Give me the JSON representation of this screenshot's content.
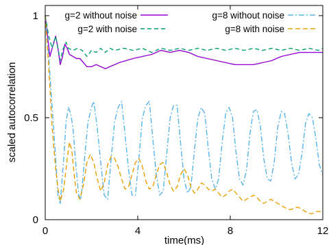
{
  "chart_data": {
    "type": "line",
    "xlabel": "time(ms)",
    "ylabel": "scaled autocorrelation",
    "xlim": [
      0,
      12
    ],
    "ylim": [
      0,
      1.05
    ],
    "xticks": [
      0,
      4,
      8,
      12
    ],
    "xtick_labels": [
      "0",
      "4",
      "8",
      "12"
    ],
    "yticks": [
      0,
      0.5,
      1
    ],
    "ytick_labels": [
      "0",
      "0.5",
      "1"
    ],
    "grid": false,
    "legend_placement": "top",
    "series": [
      {
        "name": "g=2 without noise",
        "color": "#9400d3",
        "dash": "solid",
        "points": [
          [
            0,
            1.0
          ],
          [
            0.2,
            0.8
          ],
          [
            0.3,
            0.84
          ],
          [
            0.45,
            0.9
          ],
          [
            0.55,
            0.84
          ],
          [
            0.65,
            0.76
          ],
          [
            0.75,
            0.8
          ],
          [
            0.85,
            0.86
          ],
          [
            0.95,
            0.84
          ],
          [
            1.05,
            0.81
          ],
          [
            1.2,
            0.8
          ],
          [
            1.35,
            0.79
          ],
          [
            1.5,
            0.79
          ],
          [
            1.65,
            0.77
          ],
          [
            1.8,
            0.75
          ],
          [
            2.0,
            0.75
          ],
          [
            2.2,
            0.76
          ],
          [
            2.4,
            0.75
          ],
          [
            2.6,
            0.74
          ],
          [
            2.8,
            0.75
          ],
          [
            3.0,
            0.76
          ],
          [
            3.2,
            0.77
          ],
          [
            3.5,
            0.78
          ],
          [
            3.8,
            0.79
          ],
          [
            4.2,
            0.8
          ],
          [
            4.6,
            0.81
          ],
          [
            5.0,
            0.83
          ],
          [
            5.4,
            0.82
          ],
          [
            5.8,
            0.83
          ],
          [
            6.2,
            0.82
          ],
          [
            6.6,
            0.8
          ],
          [
            7.0,
            0.79
          ],
          [
            7.4,
            0.78
          ],
          [
            7.8,
            0.77
          ],
          [
            8.2,
            0.76
          ],
          [
            8.6,
            0.76
          ],
          [
            9.0,
            0.76
          ],
          [
            9.4,
            0.77
          ],
          [
            9.8,
            0.78
          ],
          [
            10.2,
            0.8
          ],
          [
            10.6,
            0.81
          ],
          [
            11.0,
            0.82
          ],
          [
            11.4,
            0.82
          ],
          [
            11.8,
            0.82
          ],
          [
            12.0,
            0.82
          ]
        ]
      },
      {
        "name": "g=2 with noise",
        "color": "#009e73",
        "dash": "6,4",
        "points": [
          [
            0,
            1.0
          ],
          [
            0.15,
            0.9
          ],
          [
            0.3,
            0.84
          ],
          [
            0.45,
            0.9
          ],
          [
            0.55,
            0.84
          ],
          [
            0.65,
            0.78
          ],
          [
            0.75,
            0.83
          ],
          [
            0.9,
            0.87
          ],
          [
            1.0,
            0.84
          ],
          [
            1.2,
            0.83
          ],
          [
            1.4,
            0.84
          ],
          [
            1.6,
            0.83
          ],
          [
            1.8,
            0.8
          ],
          [
            2.0,
            0.83
          ],
          [
            2.2,
            0.82
          ],
          [
            2.4,
            0.84
          ],
          [
            2.6,
            0.82
          ],
          [
            2.8,
            0.84
          ],
          [
            3.0,
            0.83
          ],
          [
            3.4,
            0.84
          ],
          [
            3.8,
            0.83
          ],
          [
            4.2,
            0.84
          ],
          [
            4.6,
            0.82
          ],
          [
            5.0,
            0.84
          ],
          [
            5.4,
            0.83
          ],
          [
            5.8,
            0.84
          ],
          [
            6.2,
            0.83
          ],
          [
            6.6,
            0.84
          ],
          [
            7.0,
            0.83
          ],
          [
            7.4,
            0.84
          ],
          [
            7.8,
            0.83
          ],
          [
            8.2,
            0.84
          ],
          [
            8.6,
            0.83
          ],
          [
            9.0,
            0.84
          ],
          [
            9.4,
            0.83
          ],
          [
            9.8,
            0.84
          ],
          [
            10.2,
            0.83
          ],
          [
            10.6,
            0.84
          ],
          [
            11.0,
            0.83
          ],
          [
            11.4,
            0.84
          ],
          [
            11.8,
            0.83
          ],
          [
            12.0,
            0.84
          ]
        ]
      },
      {
        "name": "g=8 without noise",
        "color": "#56b4e9",
        "dash": "8,3,2,3",
        "points": [
          [
            0,
            1.0
          ],
          [
            0.15,
            0.8
          ],
          [
            0.3,
            0.55
          ],
          [
            0.45,
            0.3
          ],
          [
            0.55,
            0.12
          ],
          [
            0.65,
            0.08
          ],
          [
            0.8,
            0.3
          ],
          [
            0.9,
            0.48
          ],
          [
            1.0,
            0.55
          ],
          [
            1.1,
            0.52
          ],
          [
            1.2,
            0.45
          ],
          [
            1.3,
            0.3
          ],
          [
            1.45,
            0.12
          ],
          [
            1.55,
            0.1
          ],
          [
            1.7,
            0.3
          ],
          [
            1.85,
            0.48
          ],
          [
            2.0,
            0.55
          ],
          [
            2.1,
            0.58
          ],
          [
            2.25,
            0.45
          ],
          [
            2.4,
            0.28
          ],
          [
            2.55,
            0.12
          ],
          [
            2.7,
            0.1
          ],
          [
            2.85,
            0.3
          ],
          [
            3.0,
            0.48
          ],
          [
            3.15,
            0.55
          ],
          [
            3.3,
            0.58
          ],
          [
            3.45,
            0.42
          ],
          [
            3.6,
            0.25
          ],
          [
            3.75,
            0.12
          ],
          [
            3.9,
            0.12
          ],
          [
            4.05,
            0.3
          ],
          [
            4.2,
            0.5
          ],
          [
            4.35,
            0.56
          ],
          [
            4.5,
            0.58
          ],
          [
            4.65,
            0.4
          ],
          [
            4.8,
            0.22
          ],
          [
            4.95,
            0.12
          ],
          [
            5.1,
            0.14
          ],
          [
            5.25,
            0.32
          ],
          [
            5.4,
            0.5
          ],
          [
            5.55,
            0.56
          ],
          [
            5.7,
            0.56
          ],
          [
            5.85,
            0.38
          ],
          [
            6.0,
            0.2
          ],
          [
            6.15,
            0.13
          ],
          [
            6.3,
            0.16
          ],
          [
            6.45,
            0.34
          ],
          [
            6.6,
            0.5
          ],
          [
            6.75,
            0.55
          ],
          [
            6.9,
            0.52
          ],
          [
            7.05,
            0.35
          ],
          [
            7.2,
            0.2
          ],
          [
            7.35,
            0.15
          ],
          [
            7.5,
            0.2
          ],
          [
            7.65,
            0.38
          ],
          [
            7.8,
            0.52
          ],
          [
            7.95,
            0.55
          ],
          [
            8.1,
            0.5
          ],
          [
            8.25,
            0.33
          ],
          [
            8.4,
            0.2
          ],
          [
            8.55,
            0.17
          ],
          [
            8.7,
            0.24
          ],
          [
            8.85,
            0.42
          ],
          [
            9.0,
            0.53
          ],
          [
            9.15,
            0.54
          ],
          [
            9.3,
            0.46
          ],
          [
            9.45,
            0.3
          ],
          [
            9.6,
            0.2
          ],
          [
            9.75,
            0.19
          ],
          [
            9.9,
            0.28
          ],
          [
            10.05,
            0.45
          ],
          [
            10.2,
            0.53
          ],
          [
            10.35,
            0.52
          ],
          [
            10.5,
            0.42
          ],
          [
            10.65,
            0.28
          ],
          [
            10.8,
            0.2
          ],
          [
            10.95,
            0.22
          ],
          [
            11.1,
            0.32
          ],
          [
            11.25,
            0.47
          ],
          [
            11.4,
            0.52
          ],
          [
            11.55,
            0.5
          ],
          [
            11.7,
            0.4
          ],
          [
            11.85,
            0.27
          ],
          [
            12.0,
            0.22
          ]
        ]
      },
      {
        "name": "g=8 with noise",
        "color": "#e69f00",
        "dash": "7,4",
        "points": [
          [
            0,
            1.0
          ],
          [
            0.15,
            0.75
          ],
          [
            0.3,
            0.45
          ],
          [
            0.45,
            0.25
          ],
          [
            0.55,
            0.15
          ],
          [
            0.65,
            0.09
          ],
          [
            0.8,
            0.15
          ],
          [
            0.95,
            0.3
          ],
          [
            1.05,
            0.38
          ],
          [
            1.15,
            0.34
          ],
          [
            1.25,
            0.22
          ],
          [
            1.35,
            0.13
          ],
          [
            1.5,
            0.1
          ],
          [
            1.65,
            0.17
          ],
          [
            1.8,
            0.28
          ],
          [
            1.95,
            0.32
          ],
          [
            2.1,
            0.28
          ],
          [
            2.25,
            0.2
          ],
          [
            2.4,
            0.14
          ],
          [
            2.55,
            0.18
          ],
          [
            2.7,
            0.27
          ],
          [
            2.85,
            0.31
          ],
          [
            3.0,
            0.3
          ],
          [
            3.15,
            0.26
          ],
          [
            3.3,
            0.2
          ],
          [
            3.45,
            0.15
          ],
          [
            3.6,
            0.16
          ],
          [
            3.75,
            0.22
          ],
          [
            3.9,
            0.28
          ],
          [
            4.05,
            0.3
          ],
          [
            4.2,
            0.26
          ],
          [
            4.35,
            0.19
          ],
          [
            4.5,
            0.15
          ],
          [
            4.65,
            0.16
          ],
          [
            4.8,
            0.22
          ],
          [
            4.95,
            0.27
          ],
          [
            5.1,
            0.28
          ],
          [
            5.25,
            0.23
          ],
          [
            5.4,
            0.17
          ],
          [
            5.55,
            0.14
          ],
          [
            5.7,
            0.16
          ],
          [
            5.85,
            0.22
          ],
          [
            6.0,
            0.25
          ],
          [
            6.15,
            0.22
          ],
          [
            6.3,
            0.16
          ],
          [
            6.45,
            0.13
          ],
          [
            6.6,
            0.15
          ],
          [
            6.75,
            0.18
          ],
          [
            6.9,
            0.17
          ],
          [
            7.05,
            0.15
          ],
          [
            7.2,
            0.14
          ],
          [
            7.35,
            0.15
          ],
          [
            7.5,
            0.13
          ],
          [
            7.65,
            0.11
          ],
          [
            7.8,
            0.12
          ],
          [
            7.95,
            0.14
          ],
          [
            8.1,
            0.15
          ],
          [
            8.25,
            0.13
          ],
          [
            8.4,
            0.11
          ],
          [
            8.55,
            0.09
          ],
          [
            8.7,
            0.1
          ],
          [
            8.85,
            0.11
          ],
          [
            9.0,
            0.12
          ],
          [
            9.15,
            0.11
          ],
          [
            9.3,
            0.09
          ],
          [
            9.45,
            0.08
          ],
          [
            9.6,
            0.09
          ],
          [
            9.75,
            0.1
          ],
          [
            9.9,
            0.09
          ],
          [
            10.05,
            0.08
          ],
          [
            10.2,
            0.07
          ],
          [
            10.35,
            0.06
          ],
          [
            10.5,
            0.05
          ],
          [
            10.65,
            0.05
          ],
          [
            10.8,
            0.06
          ],
          [
            10.95,
            0.06
          ],
          [
            11.1,
            0.05
          ],
          [
            11.25,
            0.04
          ],
          [
            11.4,
            0.03
          ],
          [
            11.55,
            0.03
          ],
          [
            11.7,
            0.04
          ],
          [
            11.85,
            0.04
          ],
          [
            12.0,
            0.04
          ]
        ]
      }
    ]
  }
}
